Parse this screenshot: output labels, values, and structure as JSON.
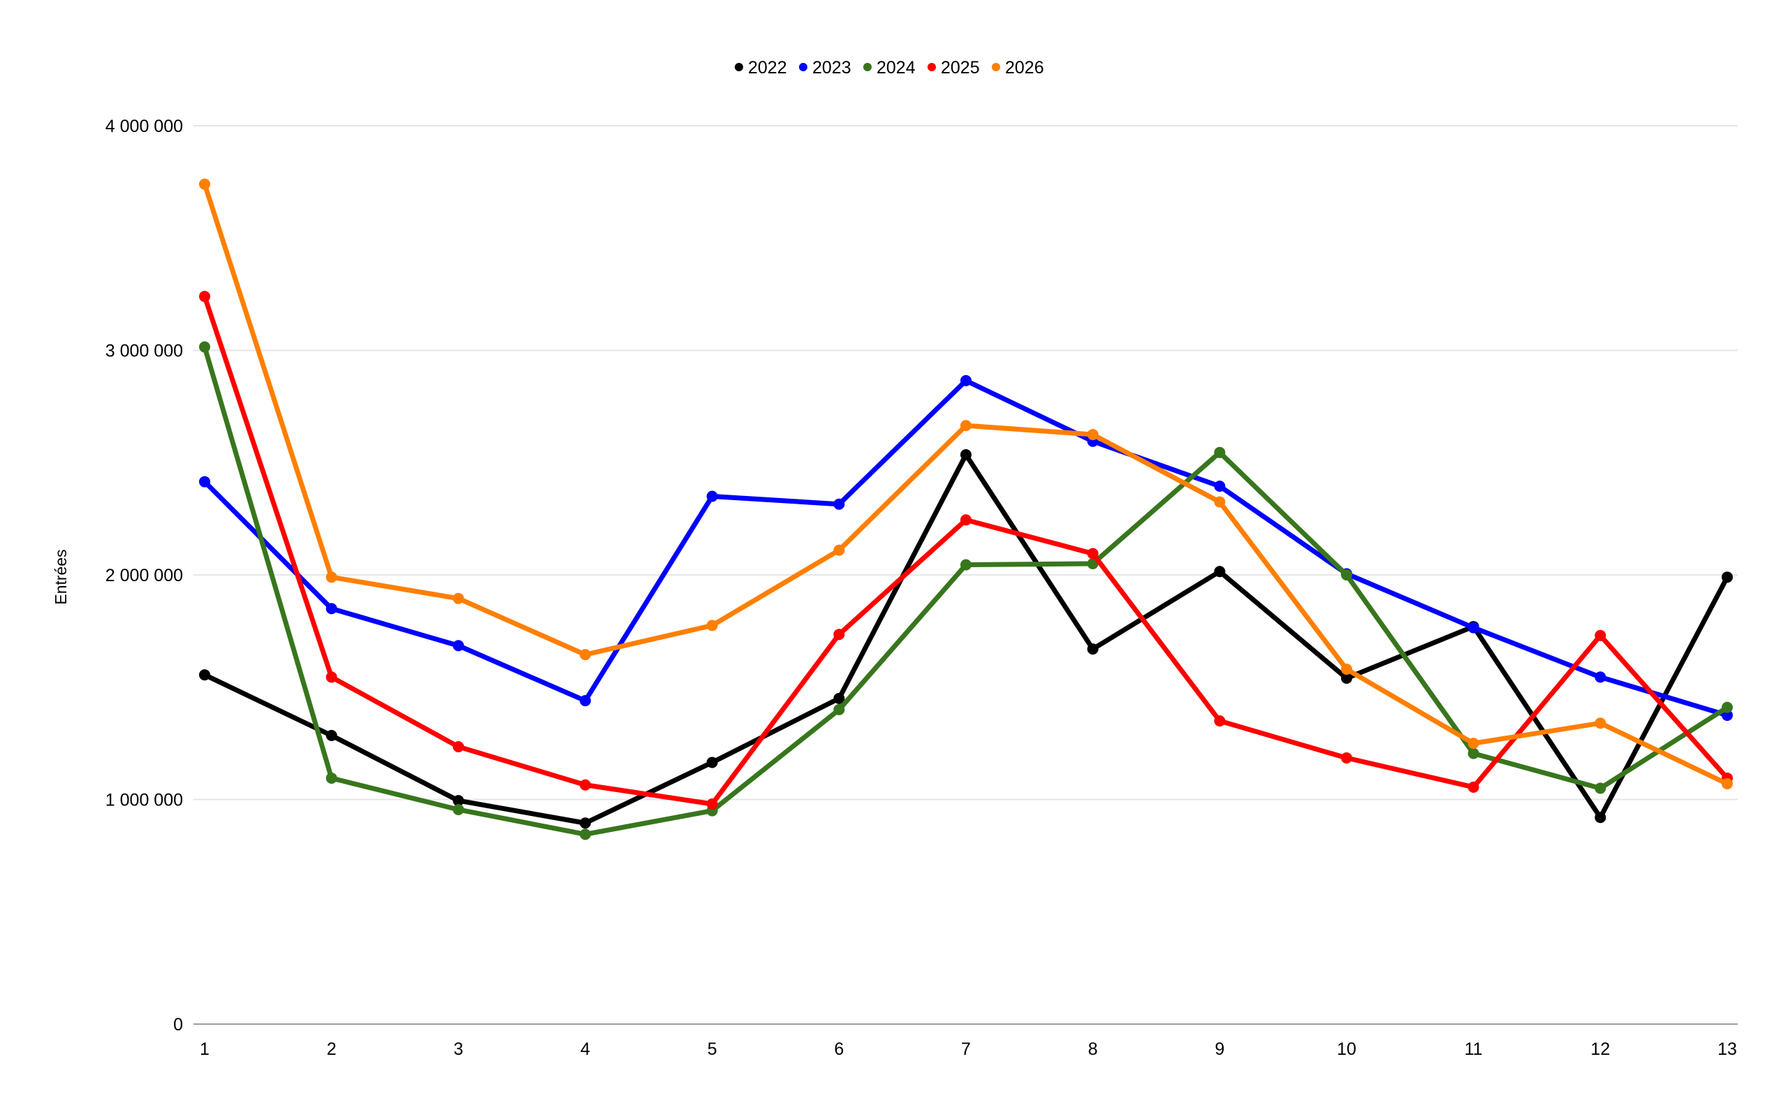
{
  "chart_data": {
    "type": "line",
    "title": "",
    "xlabel": "",
    "ylabel": "Entrées",
    "categories": [
      "1",
      "2",
      "3",
      "4",
      "5",
      "6",
      "7",
      "8",
      "9",
      "10",
      "11",
      "12",
      "13"
    ],
    "ylim": [
      0,
      4000000
    ],
    "y_ticks": [
      0,
      1000000,
      2000000,
      3000000,
      4000000
    ],
    "y_tick_labels": [
      "0",
      "1 000 000",
      "2 000 000",
      "3 000 000",
      "4 000 000"
    ],
    "grid": true,
    "legend_position": "top-center",
    "series": [
      {
        "name": "2022",
        "color": "#000000",
        "values": [
          1555000,
          1285000,
          995000,
          895000,
          1165000,
          1450000,
          2535000,
          1670000,
          2015000,
          1540000,
          1770000,
          920000,
          1990000
        ]
      },
      {
        "name": "2023",
        "color": "#0000ff",
        "values": [
          2415000,
          1850000,
          1685000,
          1440000,
          2350000,
          2315000,
          2865000,
          2595000,
          2395000,
          2005000,
          1765000,
          1545000,
          1375000
        ]
      },
      {
        "name": "2024",
        "color": "#38761d",
        "values": [
          3015000,
          1095000,
          955000,
          845000,
          950000,
          1400000,
          2045000,
          2050000,
          2545000,
          2000000,
          1205000,
          1050000,
          1410000
        ]
      },
      {
        "name": "2025",
        "color": "#ff0000",
        "values": [
          3240000,
          1545000,
          1235000,
          1065000,
          980000,
          1735000,
          2245000,
          2095000,
          1350000,
          1185000,
          1055000,
          1730000,
          1095000
        ]
      },
      {
        "name": "2026",
        "color": "#ff7f00",
        "values": [
          3740000,
          1990000,
          1895000,
          1645000,
          1775000,
          2110000,
          2665000,
          2625000,
          2325000,
          1580000,
          1250000,
          1340000,
          1070000
        ]
      }
    ]
  }
}
